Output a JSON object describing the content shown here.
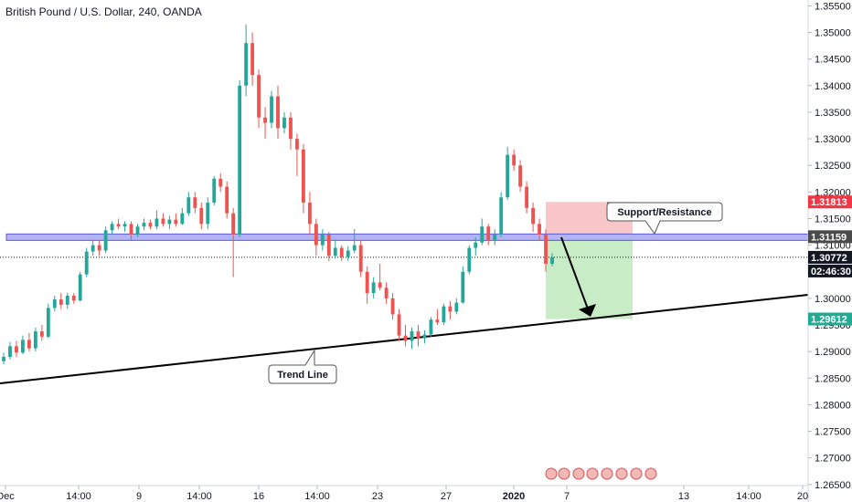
{
  "header": {
    "title": "British Pound / U.S. Dollar, 240, OANDA"
  },
  "chart_data": {
    "type": "candlestick",
    "symbol": "British Pound / U.S. Dollar",
    "interval": "240",
    "source": "OANDA",
    "y_axis": {
      "range": [
        1.2648,
        1.3561
      ],
      "ticks": [
        "1.35500",
        "1.35000",
        "1.34500",
        "1.34000",
        "1.33500",
        "1.33000",
        "1.32500",
        "1.32000",
        "1.31500",
        "1.31000",
        "1.30500",
        "1.30000",
        "1.29500",
        "1.29000",
        "1.28500",
        "1.28000",
        "1.27500",
        "1.27000",
        "1.26500"
      ]
    },
    "x_axis": {
      "ticks": [
        "Dec",
        "14:00",
        "9",
        "14:00",
        "16",
        "14:00",
        "23",
        "27",
        "2020",
        "7",
        "13",
        "14:00",
        "20"
      ]
    },
    "ohlc": [
      [
        1.2882,
        1.2898,
        1.2876,
        1.289
      ],
      [
        1.289,
        1.2918,
        1.2885,
        1.291
      ],
      [
        1.291,
        1.292,
        1.289,
        1.2898
      ],
      [
        1.2898,
        1.293,
        1.2895,
        1.2922
      ],
      [
        1.2922,
        1.2935,
        1.29,
        1.2906
      ],
      [
        1.2906,
        1.2945,
        1.29,
        1.2938
      ],
      [
        1.2938,
        1.295,
        1.292,
        1.2928
      ],
      [
        1.2928,
        1.299,
        1.2925,
        1.2982
      ],
      [
        1.2982,
        1.3005,
        1.2975,
        1.2998
      ],
      [
        1.2998,
        1.301,
        1.298,
        1.2988
      ],
      [
        1.2988,
        1.301,
        1.298,
        1.3005
      ],
      [
        1.3005,
        1.301,
        1.299,
        1.2996
      ],
      [
        1.2996,
        1.305,
        1.2994,
        1.3045
      ],
      [
        1.3045,
        1.3095,
        1.304,
        1.3088
      ],
      [
        1.3088,
        1.311,
        1.308,
        1.31
      ],
      [
        1.31,
        1.311,
        1.308,
        1.309
      ],
      [
        1.309,
        1.3135,
        1.3085,
        1.3128
      ],
      [
        1.3128,
        1.3145,
        1.312,
        1.314
      ],
      [
        1.314,
        1.315,
        1.313,
        1.3135
      ],
      [
        1.3135,
        1.3145,
        1.3125,
        1.314
      ],
      [
        1.314,
        1.3145,
        1.311,
        1.312
      ],
      [
        1.312,
        1.314,
        1.3115,
        1.3135
      ],
      [
        1.3135,
        1.315,
        1.3128,
        1.3142
      ],
      [
        1.3142,
        1.3148,
        1.313,
        1.3135
      ],
      [
        1.3135,
        1.3165,
        1.313,
        1.315
      ],
      [
        1.315,
        1.316,
        1.3135,
        1.314
      ],
      [
        1.314,
        1.3155,
        1.313,
        1.3148
      ],
      [
        1.3148,
        1.316,
        1.3135,
        1.314
      ],
      [
        1.314,
        1.317,
        1.3138,
        1.316
      ],
      [
        1.316,
        1.32,
        1.3155,
        1.319
      ],
      [
        1.319,
        1.32,
        1.316,
        1.317
      ],
      [
        1.317,
        1.318,
        1.313,
        1.314
      ],
      [
        1.314,
        1.319,
        1.313,
        1.318
      ],
      [
        1.318,
        1.323,
        1.3175,
        1.3225
      ],
      [
        1.3225,
        1.3235,
        1.32,
        1.321
      ],
      [
        1.321,
        1.322,
        1.315,
        1.316
      ],
      [
        1.316,
        1.317,
        1.304,
        1.312
      ],
      [
        1.312,
        1.341,
        1.3115,
        1.34
      ],
      [
        1.34,
        1.3515,
        1.338,
        1.348
      ],
      [
        1.348,
        1.35,
        1.34,
        1.342
      ],
      [
        1.342,
        1.343,
        1.332,
        1.334
      ],
      [
        1.334,
        1.336,
        1.33,
        1.333
      ],
      [
        1.333,
        1.339,
        1.332,
        1.338
      ],
      [
        1.338,
        1.34,
        1.33,
        1.332
      ],
      [
        1.332,
        1.335,
        1.331,
        1.334
      ],
      [
        1.334,
        1.335,
        1.328,
        1.33
      ],
      [
        1.33,
        1.331,
        1.323,
        1.328
      ],
      [
        1.328,
        1.329,
        1.316,
        1.318
      ],
      [
        1.318,
        1.32,
        1.312,
        1.314
      ],
      [
        1.314,
        1.315,
        1.308,
        1.31
      ],
      [
        1.31,
        1.313,
        1.309,
        1.312
      ],
      [
        1.312,
        1.3125,
        1.307,
        1.308
      ],
      [
        1.308,
        1.311,
        1.3075,
        1.3095
      ],
      [
        1.3095,
        1.31,
        1.307,
        1.3078
      ],
      [
        1.3078,
        1.3098,
        1.307,
        1.309
      ],
      [
        1.309,
        1.313,
        1.3085,
        1.31
      ],
      [
        1.31,
        1.311,
        1.304,
        1.305
      ],
      [
        1.305,
        1.306,
        1.299,
        1.301
      ],
      [
        1.301,
        1.304,
        1.3,
        1.303
      ],
      [
        1.303,
        1.3065,
        1.3015,
        1.302
      ],
      [
        1.302,
        1.303,
        1.299,
        1.3
      ],
      [
        1.3,
        1.301,
        1.296,
        1.297
      ],
      [
        1.297,
        1.298,
        1.292,
        1.293
      ],
      [
        1.293,
        1.295,
        1.291,
        1.292
      ],
      [
        1.292,
        1.2945,
        1.2905,
        1.2938
      ],
      [
        1.2938,
        1.295,
        1.291,
        1.2925
      ],
      [
        1.2925,
        1.294,
        1.2915,
        1.2932
      ],
      [
        1.2932,
        1.2965,
        1.2928,
        1.296
      ],
      [
        1.296,
        1.298,
        1.295,
        1.2955
      ],
      [
        1.2955,
        1.299,
        1.295,
        1.2985
      ],
      [
        1.2985,
        1.2995,
        1.296,
        1.2975
      ],
      [
        1.2975,
        1.3,
        1.297,
        1.2992
      ],
      [
        1.2992,
        1.306,
        1.299,
        1.305
      ],
      [
        1.305,
        1.31,
        1.3045,
        1.3095
      ],
      [
        1.3095,
        1.3115,
        1.308,
        1.3105
      ],
      [
        1.3105,
        1.315,
        1.31,
        1.3135
      ],
      [
        1.3135,
        1.314,
        1.31,
        1.311
      ],
      [
        1.311,
        1.313,
        1.31,
        1.312
      ],
      [
        1.312,
        1.32,
        1.3115,
        1.319
      ],
      [
        1.319,
        1.3285,
        1.3185,
        1.327
      ],
      [
        1.327,
        1.328,
        1.324,
        1.325
      ],
      [
        1.325,
        1.326,
        1.32,
        1.321
      ],
      [
        1.321,
        1.322,
        1.316,
        1.317
      ],
      [
        1.317,
        1.318,
        1.3125,
        1.314
      ],
      [
        1.314,
        1.315,
        1.311,
        1.312
      ],
      [
        1.312,
        1.313,
        1.305,
        1.3065
      ],
      [
        1.3065,
        1.3085,
        1.306,
        1.3077
      ]
    ],
    "horizontal_line": {
      "price": 1.31159,
      "label": "1.31159"
    },
    "current_price": {
      "price": 1.30772,
      "label": "1.30772",
      "countdown": "02:46:30"
    },
    "target": {
      "price": 1.29612,
      "label": "1.29612"
    },
    "stop": {
      "price": 1.31813,
      "label": "1.31813"
    },
    "annotations": {
      "support_resistance": "Support/Resistance",
      "trend_line": "Trend Line"
    },
    "colors": {
      "up": "#26a69a",
      "down": "#ef5350",
      "zone_line": "#5b5bd6",
      "zone_fill": "#b3b3f5",
      "stop_zone": "#f9c7c9",
      "profit_zone": "#c8ecc6"
    },
    "legend": "none",
    "grid": false
  }
}
